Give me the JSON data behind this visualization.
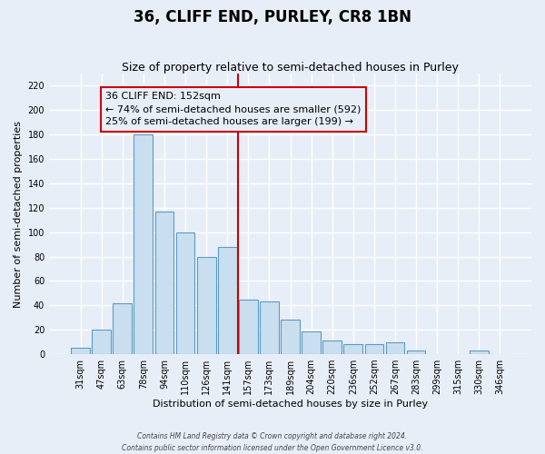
{
  "title": "36, CLIFF END, PURLEY, CR8 1BN",
  "subtitle": "Size of property relative to semi-detached houses in Purley",
  "xlabel": "Distribution of semi-detached houses by size in Purley",
  "ylabel": "Number of semi-detached properties",
  "bar_labels": [
    "31sqm",
    "47sqm",
    "63sqm",
    "78sqm",
    "94sqm",
    "110sqm",
    "126sqm",
    "141sqm",
    "157sqm",
    "173sqm",
    "189sqm",
    "204sqm",
    "220sqm",
    "236sqm",
    "252sqm",
    "267sqm",
    "283sqm",
    "299sqm",
    "315sqm",
    "330sqm",
    "346sqm"
  ],
  "bar_values": [
    5,
    20,
    42,
    180,
    117,
    100,
    80,
    88,
    45,
    43,
    28,
    19,
    11,
    8,
    8,
    10,
    3,
    0,
    0,
    3,
    0
  ],
  "bar_color": "#c9dff0",
  "bar_edge_color": "#5b9cc0",
  "vline_x": 8,
  "vline_color": "#cc0000",
  "ylim": [
    0,
    230
  ],
  "yticks": [
    0,
    20,
    40,
    60,
    80,
    100,
    120,
    140,
    160,
    180,
    200,
    220
  ],
  "annotation_title": "36 CLIFF END: 152sqm",
  "annotation_line1": "← 74% of semi-detached houses are smaller (592)",
  "annotation_line2": "25% of semi-detached houses are larger (199) →",
  "footnote1": "Contains HM Land Registry data © Crown copyright and database right 2024.",
  "footnote2": "Contains public sector information licensed under the Open Government Licence v3.0.",
  "bg_color": "#e8eef8",
  "grid_color": "#ffffff",
  "title_fontsize": 12,
  "subtitle_fontsize": 9,
  "xlabel_fontsize": 8,
  "ylabel_fontsize": 8,
  "tick_fontsize": 7,
  "ann_fontsize": 8
}
